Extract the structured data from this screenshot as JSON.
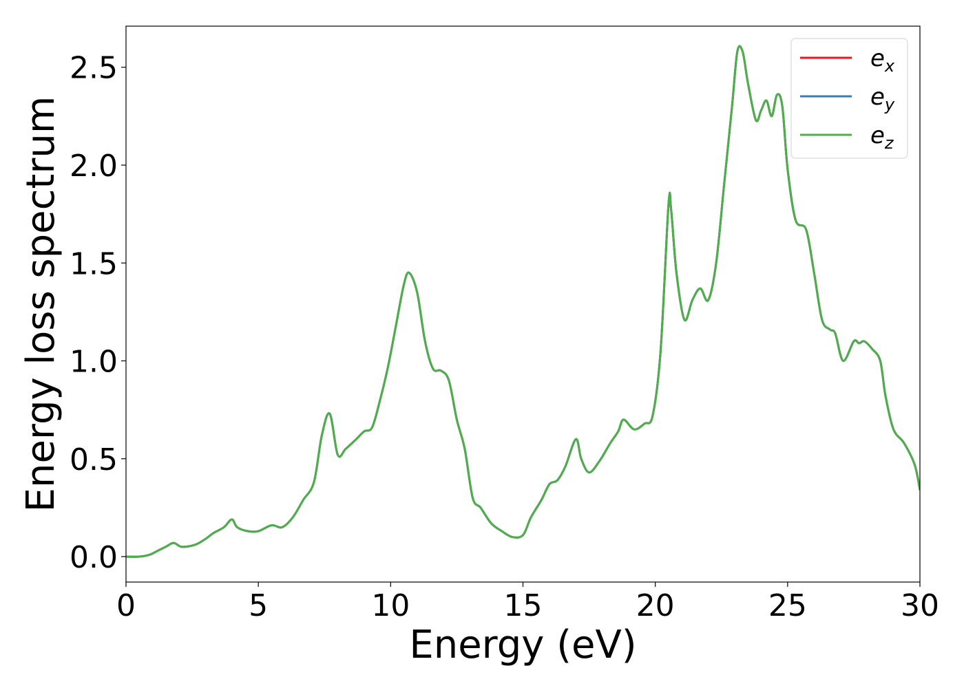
{
  "chart_data": {
    "type": "line",
    "title": "",
    "xlabel": "Energy (eV)",
    "ylabel": "Energy loss spectrum",
    "xlim": [
      0,
      30
    ],
    "ylim": [
      -0.13,
      2.71
    ],
    "x_ticks": [
      0,
      5,
      10,
      15,
      20,
      25,
      30
    ],
    "x_tick_labels": [
      "0",
      "5",
      "10",
      "15",
      "20",
      "25",
      "30"
    ],
    "y_ticks": [
      0.0,
      0.5,
      1.0,
      1.5,
      2.0,
      2.5
    ],
    "y_tick_labels": [
      "0.0",
      "0.5",
      "1.0",
      "1.5",
      "2.0",
      "2.5"
    ],
    "grid": false,
    "legend_position": "top-right",
    "series": [
      {
        "name": "e_x",
        "legend_base": "e",
        "legend_sub": "x",
        "color": "#e41a1c",
        "x": [
          0,
          0.5,
          0.9,
          1.2,
          1.5,
          1.8,
          2.1,
          2.6,
          3.0,
          3.3,
          3.7,
          4.0,
          4.2,
          4.6,
          5.0,
          5.5,
          5.9,
          6.3,
          6.7,
          7.1,
          7.4,
          7.7,
          8.0,
          8.3,
          8.7,
          9.0,
          9.3,
          9.6,
          9.9,
          10.2,
          10.5,
          10.7,
          11.0,
          11.3,
          11.6,
          11.9,
          12.2,
          12.5,
          12.8,
          13.1,
          13.4,
          13.8,
          14.2,
          14.6,
          15.0,
          15.3,
          15.7,
          16.0,
          16.3,
          16.6,
          17.0,
          17.2,
          17.5,
          17.9,
          18.3,
          18.6,
          18.8,
          19.2,
          19.6,
          19.9,
          20.2,
          20.5,
          20.6,
          20.8,
          21.1,
          21.4,
          21.7,
          22.0,
          22.3,
          22.6,
          22.9,
          23.1,
          23.3,
          23.5,
          23.8,
          24.0,
          24.2,
          24.4,
          24.6,
          24.8,
          25.0,
          25.3,
          25.7,
          26.0,
          26.3,
          26.6,
          26.8,
          27.1,
          27.5,
          27.7,
          27.9,
          28.2,
          28.5,
          28.7,
          29.0,
          29.4,
          29.8,
          30.0
        ],
        "y": [
          0.0,
          0.0,
          0.01,
          0.03,
          0.05,
          0.07,
          0.05,
          0.06,
          0.09,
          0.12,
          0.15,
          0.19,
          0.15,
          0.13,
          0.13,
          0.16,
          0.15,
          0.2,
          0.29,
          0.38,
          0.62,
          0.73,
          0.52,
          0.55,
          0.6,
          0.64,
          0.66,
          0.8,
          0.97,
          1.18,
          1.39,
          1.45,
          1.35,
          1.1,
          0.96,
          0.95,
          0.9,
          0.7,
          0.55,
          0.3,
          0.25,
          0.17,
          0.13,
          0.1,
          0.11,
          0.2,
          0.29,
          0.37,
          0.39,
          0.46,
          0.6,
          0.5,
          0.43,
          0.49,
          0.58,
          0.64,
          0.7,
          0.65,
          0.68,
          0.72,
          1.05,
          1.8,
          1.77,
          1.45,
          1.21,
          1.31,
          1.37,
          1.31,
          1.5,
          1.9,
          2.3,
          2.58,
          2.58,
          2.42,
          2.23,
          2.28,
          2.33,
          2.25,
          2.36,
          2.3,
          1.98,
          1.72,
          1.67,
          1.45,
          1.21,
          1.16,
          1.14,
          1.0,
          1.1,
          1.09,
          1.1,
          1.06,
          1.0,
          0.82,
          0.65,
          0.58,
          0.47,
          0.34
        ]
      },
      {
        "name": "e_y",
        "legend_base": "e",
        "legend_sub": "y",
        "color": "#377eb8",
        "x": [
          0,
          0.5,
          0.9,
          1.2,
          1.5,
          1.8,
          2.1,
          2.6,
          3.0,
          3.3,
          3.7,
          4.0,
          4.2,
          4.6,
          5.0,
          5.5,
          5.9,
          6.3,
          6.7,
          7.1,
          7.4,
          7.7,
          8.0,
          8.3,
          8.7,
          9.0,
          9.3,
          9.6,
          9.9,
          10.2,
          10.5,
          10.7,
          11.0,
          11.3,
          11.6,
          11.9,
          12.2,
          12.5,
          12.8,
          13.1,
          13.4,
          13.8,
          14.2,
          14.6,
          15.0,
          15.3,
          15.7,
          16.0,
          16.3,
          16.6,
          17.0,
          17.2,
          17.5,
          17.9,
          18.3,
          18.6,
          18.8,
          19.2,
          19.6,
          19.9,
          20.2,
          20.5,
          20.6,
          20.8,
          21.1,
          21.4,
          21.7,
          22.0,
          22.3,
          22.6,
          22.9,
          23.1,
          23.3,
          23.5,
          23.8,
          24.0,
          24.2,
          24.4,
          24.6,
          24.8,
          25.0,
          25.3,
          25.7,
          26.0,
          26.3,
          26.6,
          26.8,
          27.1,
          27.5,
          27.7,
          27.9,
          28.2,
          28.5,
          28.7,
          29.0,
          29.4,
          29.8,
          30.0
        ],
        "y": [
          0.0,
          0.0,
          0.01,
          0.03,
          0.05,
          0.07,
          0.05,
          0.06,
          0.09,
          0.12,
          0.15,
          0.19,
          0.15,
          0.13,
          0.13,
          0.16,
          0.15,
          0.2,
          0.29,
          0.38,
          0.62,
          0.73,
          0.52,
          0.55,
          0.6,
          0.64,
          0.66,
          0.8,
          0.97,
          1.18,
          1.39,
          1.45,
          1.35,
          1.1,
          0.96,
          0.95,
          0.9,
          0.7,
          0.55,
          0.3,
          0.25,
          0.17,
          0.13,
          0.1,
          0.11,
          0.2,
          0.29,
          0.37,
          0.39,
          0.46,
          0.6,
          0.5,
          0.43,
          0.49,
          0.58,
          0.64,
          0.7,
          0.65,
          0.68,
          0.72,
          1.05,
          1.8,
          1.77,
          1.45,
          1.21,
          1.31,
          1.37,
          1.31,
          1.5,
          1.9,
          2.3,
          2.58,
          2.58,
          2.42,
          2.23,
          2.28,
          2.33,
          2.25,
          2.36,
          2.3,
          1.98,
          1.72,
          1.67,
          1.45,
          1.21,
          1.16,
          1.14,
          1.0,
          1.1,
          1.09,
          1.1,
          1.06,
          1.0,
          0.82,
          0.65,
          0.58,
          0.47,
          0.34
        ]
      },
      {
        "name": "e_z",
        "legend_base": "e",
        "legend_sub": "z",
        "color": "#4daf4a",
        "x": [
          0,
          0.5,
          0.9,
          1.2,
          1.5,
          1.8,
          2.1,
          2.6,
          3.0,
          3.3,
          3.7,
          4.0,
          4.2,
          4.6,
          5.0,
          5.5,
          5.9,
          6.3,
          6.7,
          7.1,
          7.4,
          7.7,
          8.0,
          8.3,
          8.7,
          9.0,
          9.3,
          9.6,
          9.9,
          10.2,
          10.5,
          10.7,
          11.0,
          11.3,
          11.6,
          11.9,
          12.2,
          12.5,
          12.8,
          13.1,
          13.4,
          13.8,
          14.2,
          14.6,
          15.0,
          15.3,
          15.7,
          16.0,
          16.3,
          16.6,
          17.0,
          17.2,
          17.5,
          17.9,
          18.3,
          18.6,
          18.8,
          19.2,
          19.6,
          19.9,
          20.2,
          20.5,
          20.6,
          20.8,
          21.1,
          21.4,
          21.7,
          22.0,
          22.3,
          22.6,
          22.9,
          23.1,
          23.3,
          23.5,
          23.8,
          24.0,
          24.2,
          24.4,
          24.6,
          24.8,
          25.0,
          25.3,
          25.7,
          26.0,
          26.3,
          26.6,
          26.8,
          27.1,
          27.5,
          27.7,
          27.9,
          28.2,
          28.5,
          28.7,
          29.0,
          29.4,
          29.8,
          30.0
        ],
        "y": [
          0.0,
          0.0,
          0.01,
          0.03,
          0.05,
          0.07,
          0.05,
          0.06,
          0.09,
          0.12,
          0.15,
          0.19,
          0.15,
          0.13,
          0.13,
          0.16,
          0.15,
          0.2,
          0.29,
          0.38,
          0.62,
          0.73,
          0.52,
          0.55,
          0.6,
          0.64,
          0.66,
          0.8,
          0.97,
          1.18,
          1.39,
          1.45,
          1.35,
          1.1,
          0.96,
          0.95,
          0.9,
          0.7,
          0.55,
          0.3,
          0.25,
          0.17,
          0.13,
          0.1,
          0.11,
          0.2,
          0.29,
          0.37,
          0.39,
          0.46,
          0.6,
          0.5,
          0.43,
          0.49,
          0.58,
          0.64,
          0.7,
          0.65,
          0.68,
          0.72,
          1.05,
          1.8,
          1.77,
          1.45,
          1.21,
          1.31,
          1.37,
          1.31,
          1.5,
          1.9,
          2.3,
          2.58,
          2.58,
          2.42,
          2.23,
          2.28,
          2.33,
          2.25,
          2.36,
          2.3,
          1.98,
          1.72,
          1.67,
          1.45,
          1.21,
          1.16,
          1.14,
          1.0,
          1.1,
          1.09,
          1.1,
          1.06,
          1.0,
          0.82,
          0.65,
          0.58,
          0.47,
          0.34
        ]
      }
    ]
  }
}
